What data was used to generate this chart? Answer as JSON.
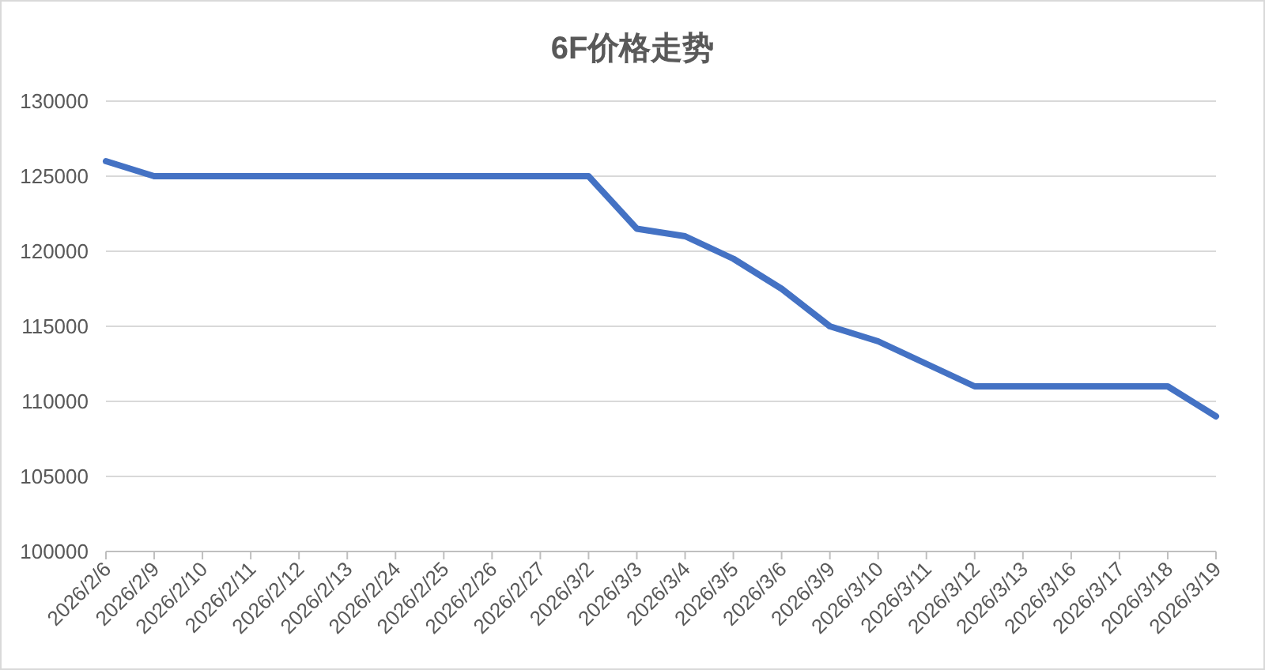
{
  "chart_data": {
    "type": "line",
    "title": "6F价格走势",
    "categories": [
      "2026/2/6",
      "2026/2/9",
      "2026/2/10",
      "2026/2/11",
      "2026/2/12",
      "2026/2/13",
      "2026/2/24",
      "2026/2/25",
      "2026/2/26",
      "2026/2/27",
      "2026/3/2",
      "2026/3/3",
      "2026/3/4",
      "2026/3/5",
      "2026/3/6",
      "2026/3/9",
      "2026/3/10",
      "2026/3/11",
      "2026/3/12",
      "2026/3/13",
      "2026/3/16",
      "2026/3/17",
      "2026/3/18",
      "2026/3/19"
    ],
    "series": [
      {
        "color": "#4472c4",
        "values": [
          126000,
          125000,
          125000,
          125000,
          125000,
          125000,
          125000,
          125000,
          125000,
          125000,
          125000,
          121500,
          121000,
          119500,
          117500,
          115000,
          114000,
          112500,
          111000,
          111000,
          111000,
          111000,
          111000,
          109000
        ]
      }
    ],
    "ylim": [
      100000,
      130000
    ],
    "yticks": [
      100000,
      105000,
      110000,
      115000,
      120000,
      125000,
      130000
    ],
    "grid": "y",
    "marker": "none"
  }
}
